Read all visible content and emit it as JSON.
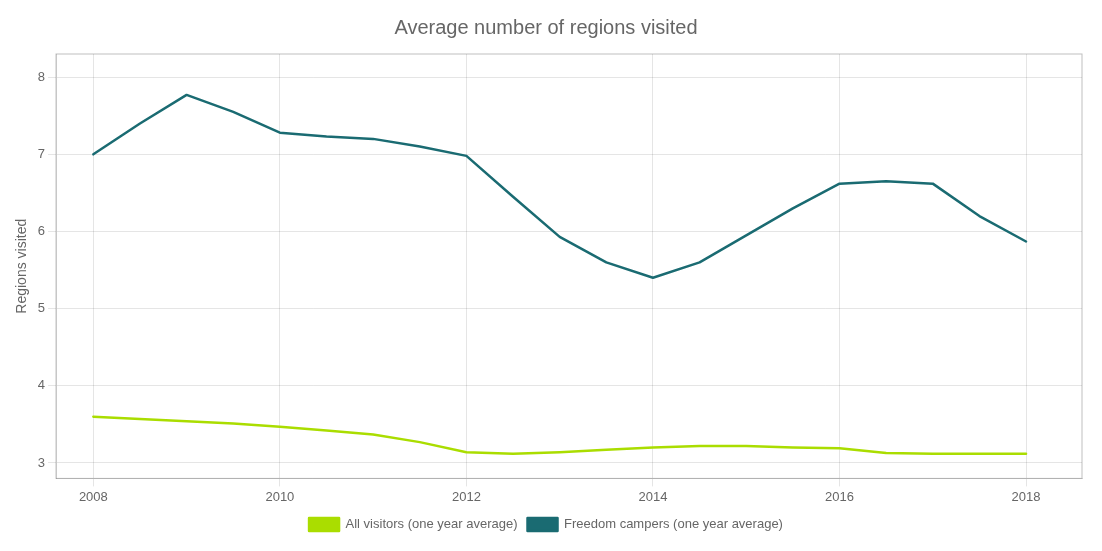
{
  "chart_data": {
    "type": "line",
    "title": "Average number of regions visited",
    "ylabel": "Regions visited",
    "x": [
      2008,
      2008.5,
      2009,
      2009.5,
      2010,
      2010.5,
      2011,
      2011.5,
      2012,
      2012.5,
      2013,
      2013.5,
      2014,
      2014.5,
      2015,
      2015.5,
      2016,
      2016.5,
      2017,
      2017.5,
      2018
    ],
    "series": [
      {
        "name": "All visitors (one year average)",
        "color": "#aadd00",
        "values": [
          3.6,
          3.57,
          3.54,
          3.51,
          3.47,
          3.42,
          3.37,
          3.27,
          3.14,
          3.12,
          3.14,
          3.17,
          3.2,
          3.22,
          3.22,
          3.2,
          3.19,
          3.13,
          3.12,
          3.12,
          3.12
        ]
      },
      {
        "name": "Freedom campers (one year average)",
        "color": "#1a6b72",
        "values": [
          7.0,
          7.4,
          7.77,
          7.55,
          7.28,
          7.23,
          7.2,
          7.1,
          6.98,
          6.45,
          5.93,
          5.6,
          5.4,
          5.6,
          5.95,
          6.3,
          6.62,
          6.65,
          6.62,
          6.2,
          5.87
        ]
      }
    ],
    "xlim": [
      2007.6,
      2018.6
    ],
    "xticks": [
      2008,
      2010,
      2012,
      2014,
      2016,
      2018
    ],
    "ylim": [
      2.8,
      8.3
    ],
    "yticks": [
      3,
      4,
      5,
      6,
      7,
      8
    ],
    "grid": true,
    "legend": "bottom"
  }
}
